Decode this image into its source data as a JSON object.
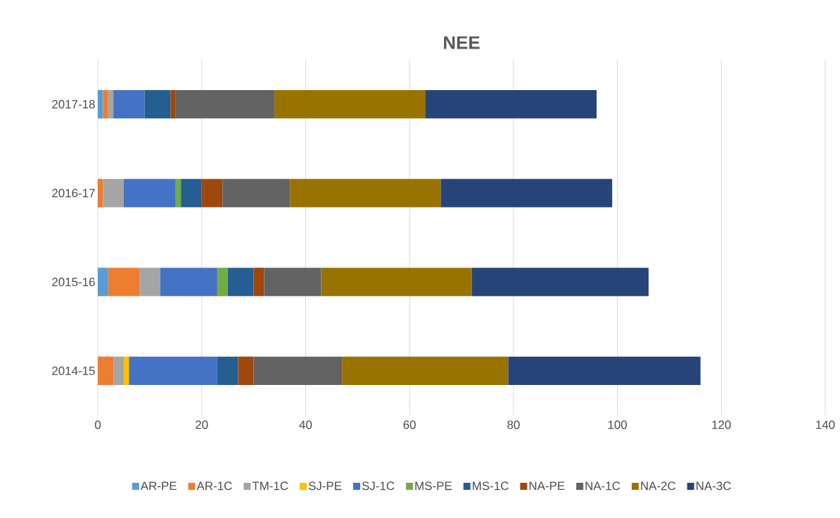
{
  "chart_data": {
    "type": "bar",
    "orientation": "horizontal",
    "stacked": true,
    "title": "NEE",
    "categories": [
      "2017-18",
      "2016-17",
      "2015-16",
      "2014-15"
    ],
    "series": [
      {
        "name": "AR-PE",
        "color": "#5b9bd5",
        "values": [
          1,
          null,
          2,
          null
        ]
      },
      {
        "name": "AR-1C",
        "color": "#ed7d31",
        "values": [
          1,
          1,
          6,
          3
        ]
      },
      {
        "name": "TM-1C",
        "color": "#a5a5a5",
        "values": [
          1,
          4,
          4,
          2
        ]
      },
      {
        "name": "SJ-PE",
        "color": "#ffc000",
        "values": [
          null,
          null,
          null,
          1
        ]
      },
      {
        "name": "SJ-1C",
        "color": "#4472c4",
        "values": [
          6,
          10,
          11,
          17
        ]
      },
      {
        "name": "MS-PE",
        "color": "#70ad47",
        "values": [
          null,
          1,
          2,
          null
        ]
      },
      {
        "name": "MS-1C",
        "color": "#255e91",
        "values": [
          5,
          4,
          5,
          4
        ]
      },
      {
        "name": "NA-PE",
        "color": "#9e480e",
        "values": [
          1,
          4,
          2,
          3
        ]
      },
      {
        "name": "NA-1C",
        "color": "#636363",
        "values": [
          19,
          13,
          11,
          17
        ]
      },
      {
        "name": "NA-2C",
        "color": "#997300",
        "values": [
          29,
          29,
          29,
          32
        ]
      },
      {
        "name": "NA-3C",
        "color": "#264478",
        "values": [
          33,
          33,
          34,
          37
        ]
      }
    ],
    "xlim": [
      0,
      140
    ],
    "xticks": [
      0,
      20,
      40,
      60,
      80,
      100,
      120,
      140
    ],
    "grid": "x",
    "legend": "bottom"
  }
}
